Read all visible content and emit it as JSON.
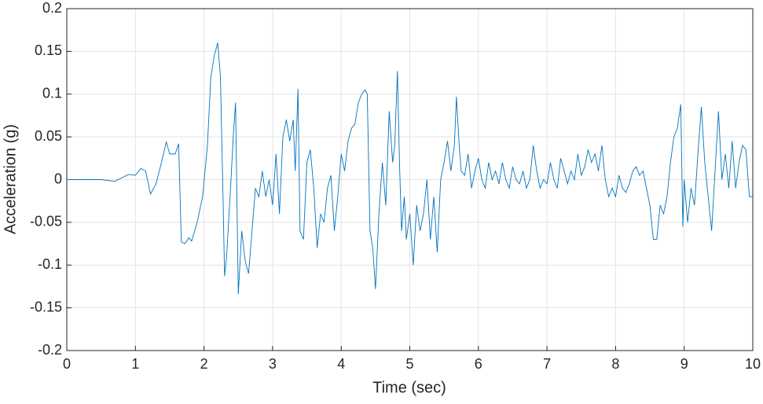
{
  "chart_data": {
    "type": "line",
    "xlabel": "Time (sec)",
    "ylabel": "Acceleration (g)",
    "xlim": [
      0,
      10
    ],
    "xticks": [
      0,
      1,
      2,
      3,
      4,
      5,
      6,
      7,
      8,
      9,
      10
    ],
    "ylim": [
      -0.2,
      0.2
    ],
    "yticks": [
      0.2,
      0.15,
      0.1,
      0.05,
      0,
      -0.05,
      -0.1,
      -0.15,
      -0.2
    ],
    "grid": true,
    "series": [
      {
        "color": "#0072bd",
        "x": [
          0,
          0.5,
          0.7,
          0.9,
          1.0,
          1.08,
          1.15,
          1.22,
          1.3,
          1.38,
          1.45,
          1.5,
          1.58,
          1.63,
          1.67,
          1.72,
          1.78,
          1.82,
          1.9,
          1.98,
          2.05,
          2.1,
          2.15,
          2.2,
          2.24,
          2.28,
          2.3,
          2.33,
          2.38,
          2.43,
          2.46,
          2.5,
          2.55,
          2.6,
          2.65,
          2.7,
          2.75,
          2.8,
          2.85,
          2.9,
          2.95,
          3.0,
          3.05,
          3.1,
          3.15,
          3.2,
          3.25,
          3.3,
          3.33,
          3.37,
          3.4,
          3.45,
          3.5,
          3.55,
          3.6,
          3.65,
          3.7,
          3.75,
          3.8,
          3.85,
          3.9,
          3.95,
          4.0,
          4.05,
          4.1,
          4.15,
          4.2,
          4.25,
          4.3,
          4.35,
          4.38,
          4.42,
          4.46,
          4.5,
          4.55,
          4.6,
          4.65,
          4.7,
          4.75,
          4.78,
          4.82,
          4.85,
          4.88,
          4.92,
          4.95,
          5.0,
          5.05,
          5.1,
          5.15,
          5.2,
          5.25,
          5.3,
          5.35,
          5.4,
          5.45,
          5.5,
          5.55,
          5.6,
          5.65,
          5.68,
          5.72,
          5.75,
          5.8,
          5.85,
          5.9,
          5.95,
          6.0,
          6.05,
          6.1,
          6.15,
          6.2,
          6.25,
          6.3,
          6.35,
          6.4,
          6.45,
          6.5,
          6.55,
          6.6,
          6.65,
          6.7,
          6.75,
          6.8,
          6.85,
          6.9,
          6.95,
          7.0,
          7.05,
          7.1,
          7.15,
          7.2,
          7.25,
          7.3,
          7.35,
          7.4,
          7.45,
          7.5,
          7.55,
          7.6,
          7.65,
          7.7,
          7.75,
          7.8,
          7.85,
          7.9,
          7.95,
          8.0,
          8.05,
          8.1,
          8.15,
          8.2,
          8.25,
          8.3,
          8.35,
          8.4,
          8.45,
          8.5,
          8.55,
          8.6,
          8.65,
          8.7,
          8.75,
          8.8,
          8.85,
          8.9,
          8.95,
          8.98,
          9.0,
          9.05,
          9.1,
          9.15,
          9.2,
          9.25,
          9.3,
          9.35,
          9.4,
          9.45,
          9.5,
          9.55,
          9.6,
          9.65,
          9.7,
          9.75,
          9.8,
          9.85,
          9.9,
          9.95,
          10.0
        ],
        "values": [
          0,
          0,
          -0.002,
          0.006,
          0.005,
          0.013,
          0.01,
          -0.017,
          -0.005,
          0.02,
          0.044,
          0.03,
          0.03,
          0.042,
          -0.073,
          -0.075,
          -0.068,
          -0.072,
          -0.05,
          -0.02,
          0.04,
          0.12,
          0.145,
          0.16,
          0.12,
          -0.03,
          -0.113,
          -0.09,
          -0.02,
          0.055,
          0.09,
          -0.134,
          -0.06,
          -0.095,
          -0.11,
          -0.06,
          -0.01,
          -0.02,
          0.01,
          -0.02,
          0.0,
          -0.03,
          0.03,
          -0.04,
          0.05,
          0.07,
          0.045,
          0.07,
          0.01,
          0.106,
          -0.06,
          -0.07,
          0.02,
          0.035,
          -0.01,
          -0.08,
          -0.04,
          -0.05,
          -0.01,
          0.005,
          -0.06,
          -0.02,
          0.03,
          0.01,
          0.045,
          0.06,
          0.065,
          0.09,
          0.1,
          0.105,
          0.1,
          -0.06,
          -0.08,
          -0.128,
          -0.04,
          0.02,
          -0.03,
          0.08,
          0.02,
          0.04,
          0.127,
          0.02,
          -0.06,
          -0.02,
          -0.07,
          -0.04,
          -0.1,
          -0.03,
          -0.06,
          -0.04,
          0.0,
          -0.07,
          -0.02,
          -0.085,
          0.0,
          0.02,
          0.045,
          0.01,
          0.04,
          0.097,
          0.04,
          0.01,
          0.005,
          0.03,
          -0.01,
          0.01,
          0.025,
          0.0,
          -0.01,
          0.02,
          0.0,
          0.01,
          -0.005,
          0.02,
          0.0,
          -0.01,
          0.015,
          0.0,
          -0.005,
          0.01,
          -0.01,
          0.0,
          0.04,
          0.01,
          -0.01,
          0.0,
          -0.005,
          0.02,
          0.0,
          -0.01,
          0.025,
          0.01,
          -0.005,
          0.01,
          0.0,
          0.03,
          0.005,
          0.015,
          0.035,
          0.02,
          0.03,
          0.01,
          0.04,
          0.0,
          -0.02,
          -0.01,
          -0.02,
          0.005,
          -0.01,
          -0.015,
          -0.005,
          0.01,
          0.015,
          0.005,
          0.01,
          -0.01,
          -0.03,
          -0.07,
          -0.07,
          -0.03,
          -0.04,
          -0.02,
          0.02,
          0.05,
          0.06,
          0.088,
          -0.055,
          0.0,
          -0.05,
          -0.01,
          -0.03,
          0.03,
          0.085,
          0.02,
          -0.02,
          -0.06,
          0.01,
          0.08,
          0.0,
          0.03,
          -0.01,
          0.045,
          -0.01,
          0.02,
          0.04,
          0.035,
          -0.02,
          -0.02
        ]
      }
    ]
  }
}
